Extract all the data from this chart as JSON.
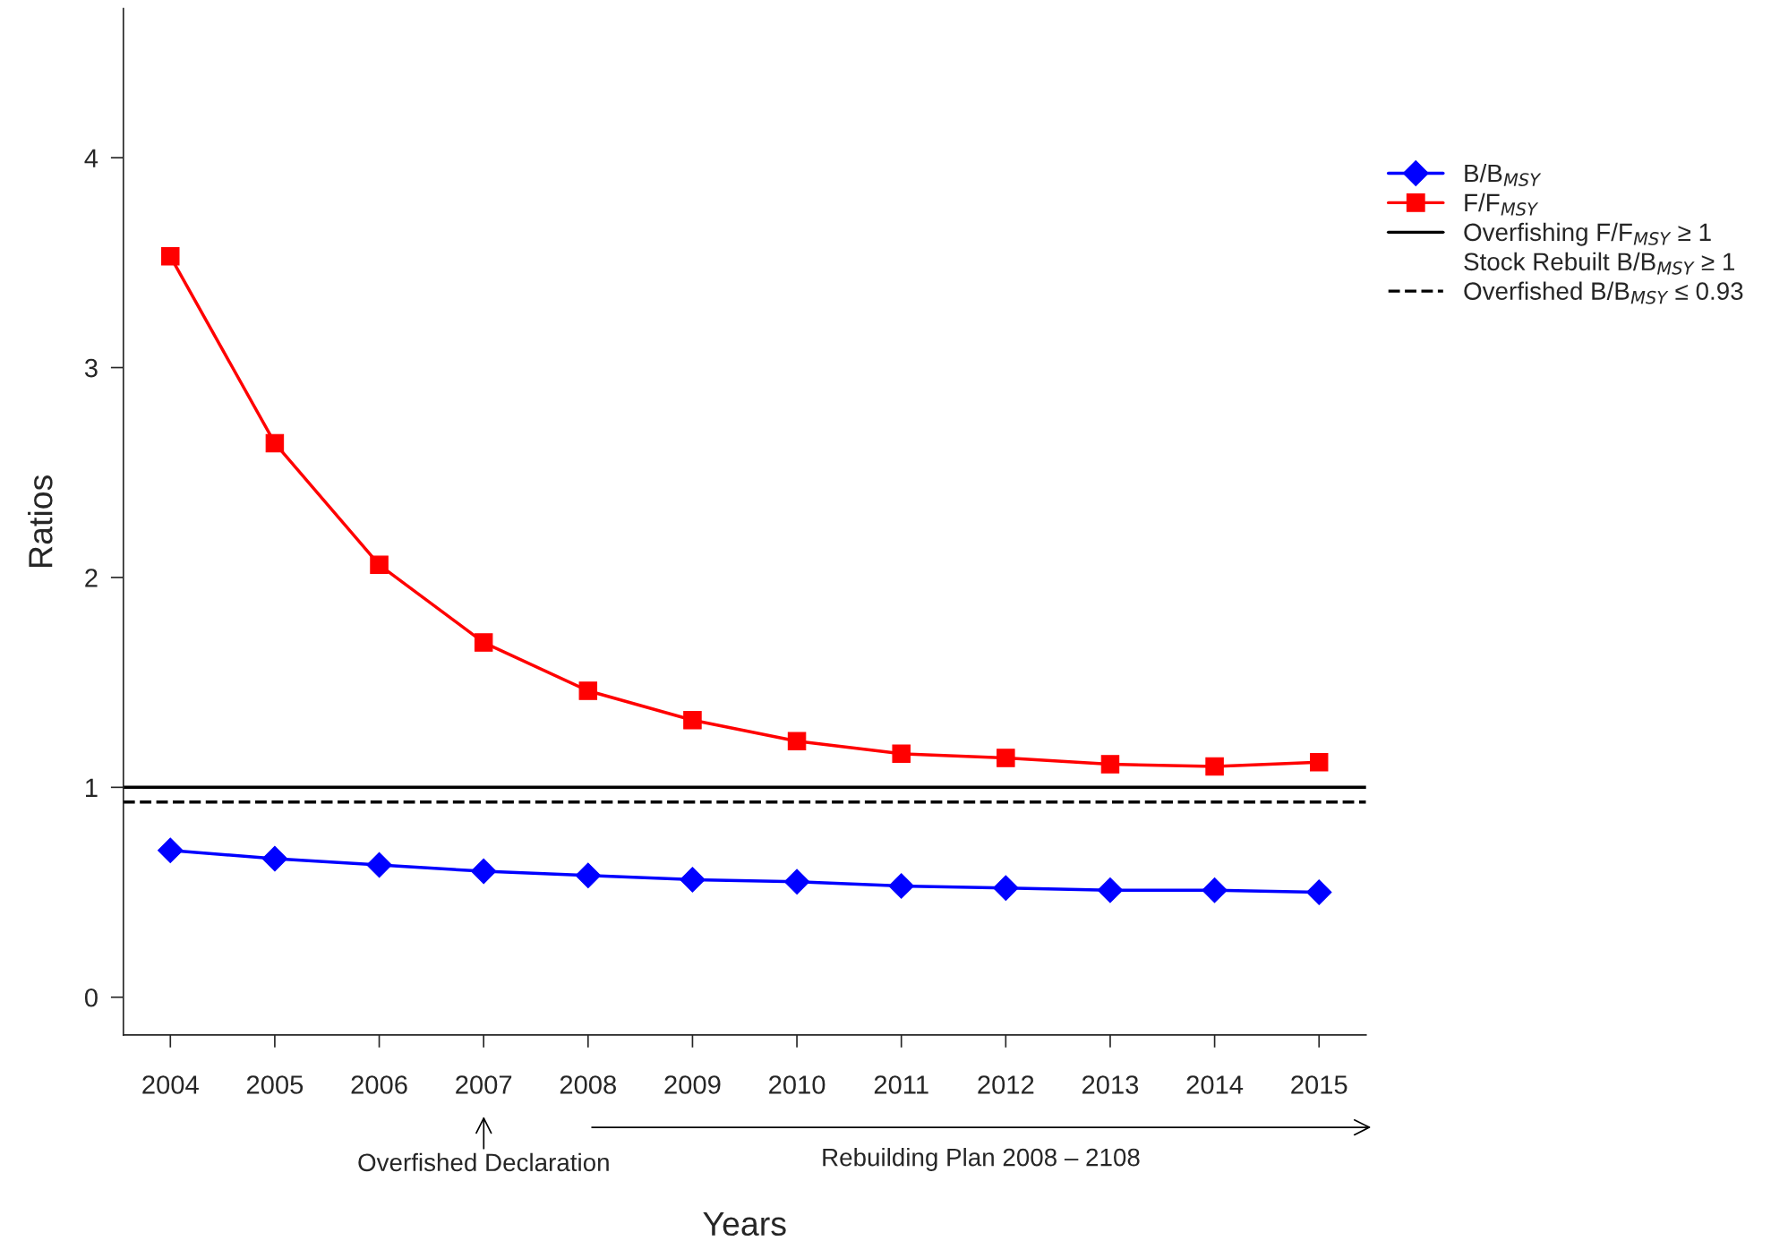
{
  "chart_data": {
    "type": "line",
    "xlabel": "Years",
    "ylabel": "Ratios",
    "x": [
      2004,
      2005,
      2006,
      2007,
      2008,
      2009,
      2010,
      2011,
      2012,
      2013,
      2014,
      2015
    ],
    "series": [
      {
        "name": "B/B$_{MSY}$",
        "color": "#0000ff",
        "marker": "diamond",
        "values": [
          0.7,
          0.66,
          0.63,
          0.6,
          0.58,
          0.56,
          0.55,
          0.53,
          0.52,
          0.51,
          0.51,
          0.5
        ]
      },
      {
        "name": "F/F$_{MSY}$",
        "color": "#ff0000",
        "marker": "square",
        "values": [
          3.53,
          2.64,
          2.06,
          1.69,
          1.46,
          1.32,
          1.22,
          1.16,
          1.14,
          1.11,
          1.1,
          1.12
        ]
      }
    ],
    "ref_lines": [
      {
        "axis": "y",
        "value": 1,
        "label": "Overfishing F/F$_{MSY}$ ≥ 1",
        "color": "#000000",
        "line_style": "solid"
      },
      {
        "axis": "y",
        "value": 0.93,
        "label": "Overfished B/B$_{MSY}$ ≤ 0.93",
        "color": "#000000",
        "line_style": "dashed"
      }
    ],
    "annotations": [
      "Overfished Declaration",
      "Rebuilding Plan 2008 – 2108",
      "Stock Rebuilt B/B$_{MSY}$ ≥ 1"
    ],
    "xlim": [
      2003.55,
      2015.45
    ],
    "ylim": [
      -0.18,
      4.71
    ],
    "xticks": [
      2004,
      2005,
      2006,
      2007,
      2008,
      2009,
      2010,
      2011,
      2012,
      2013,
      2014,
      2015
    ],
    "yticks": [
      0,
      1,
      2,
      3,
      4
    ],
    "grid": false,
    "legend": "right"
  }
}
